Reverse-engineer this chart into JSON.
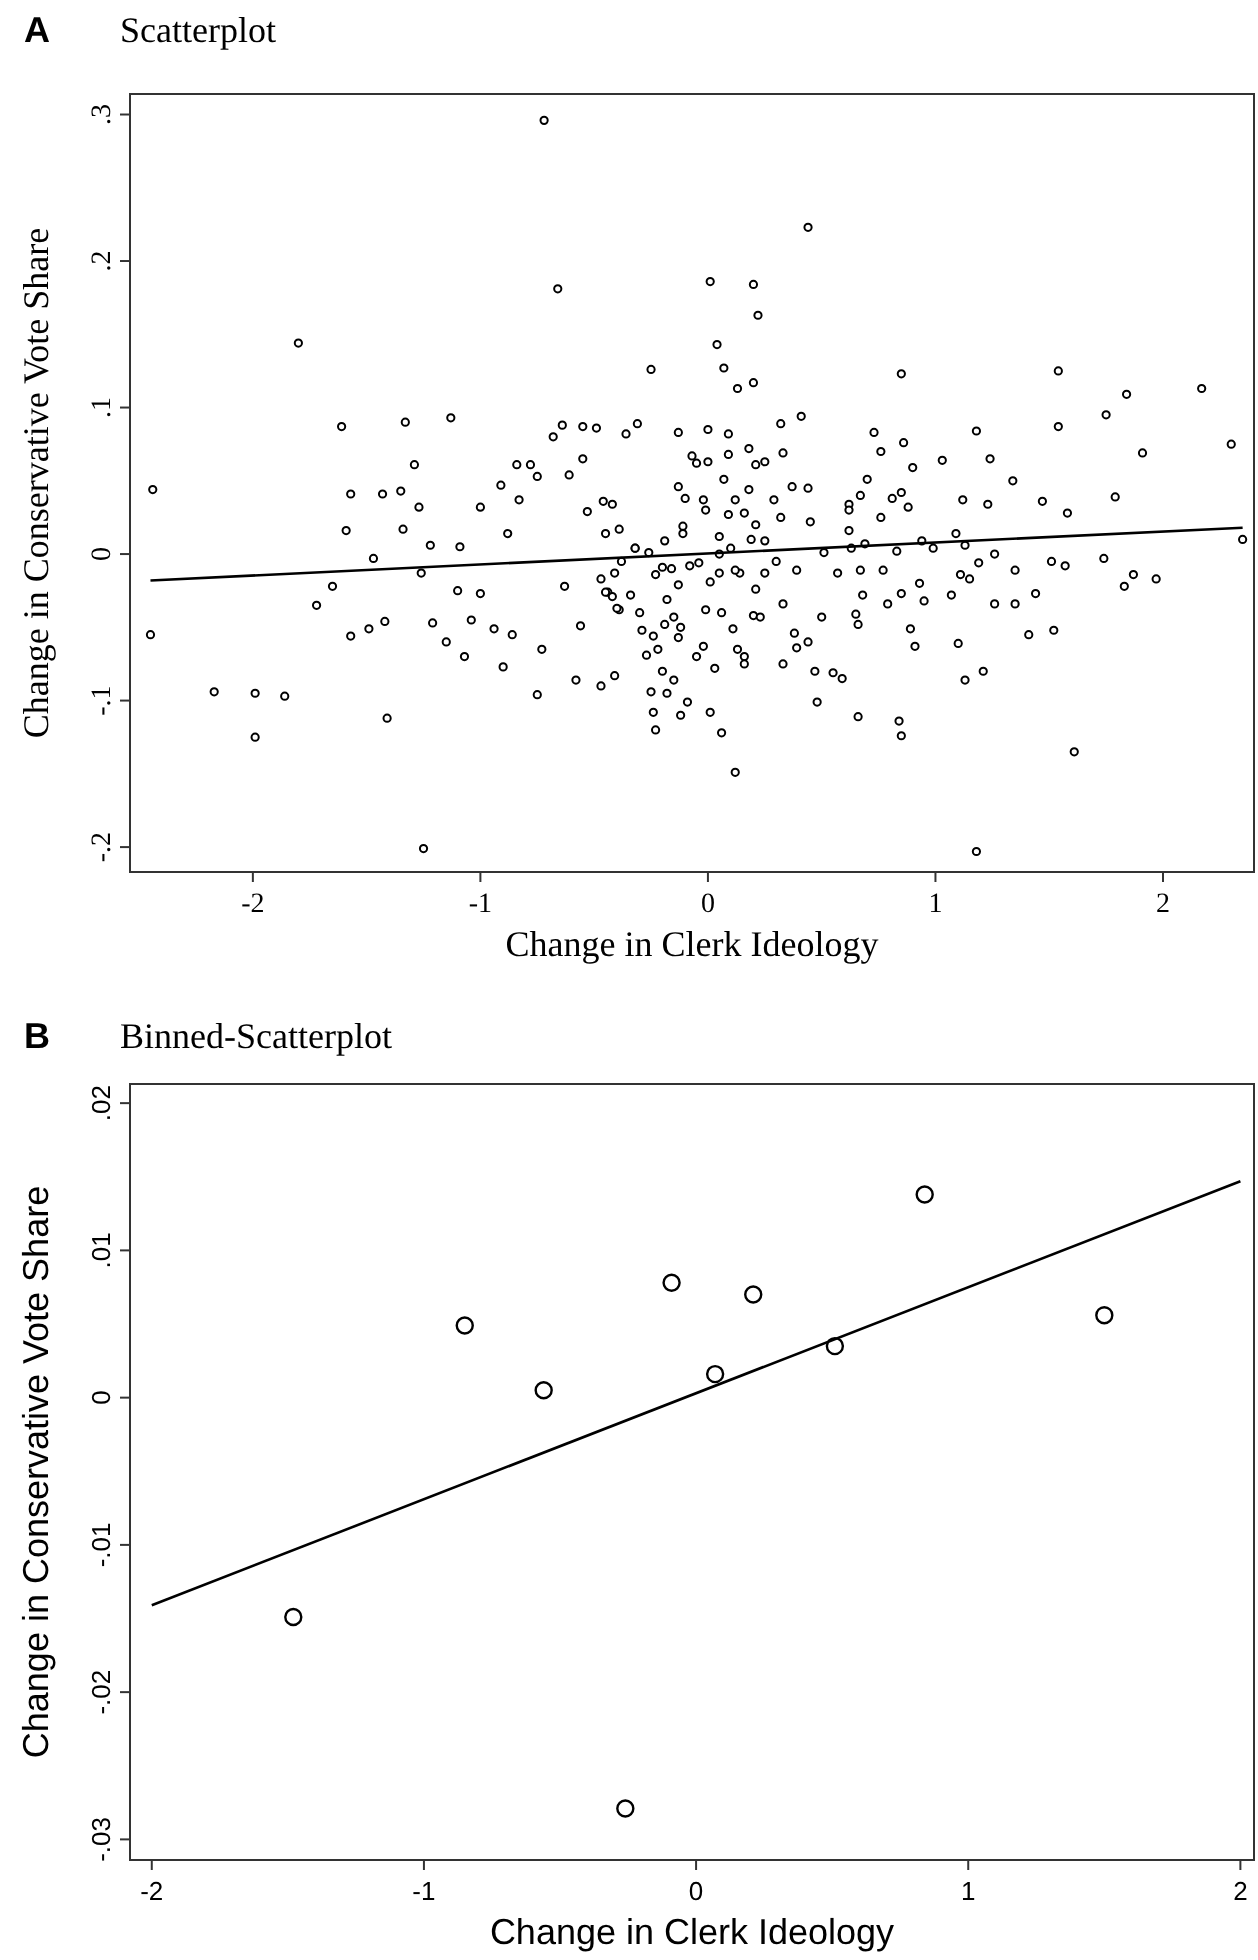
{
  "chart_data": [
    {
      "type": "scatter",
      "title": "Scatterplot",
      "annotations": [
        "A"
      ],
      "xlabel": "Change in Clerk Ideology",
      "ylabel": "Change in Conservative Vote Share",
      "xlim": [
        -2.54,
        2.4
      ],
      "ylim": [
        -0.217,
        0.314
      ],
      "xticks": [
        -2,
        -1,
        0,
        1,
        2
      ],
      "yticks": [
        {
          "value": -0.2,
          "label": "-.2"
        },
        {
          "value": -0.1,
          "label": "-.1"
        },
        0,
        {
          "value": 0.1,
          "label": ".1"
        },
        {
          "value": 0.2,
          "label": ".2"
        },
        {
          "value": 0.3,
          "label": ".3"
        }
      ],
      "grid": false,
      "series": [
        {
          "marker": "circle",
          "color": "#000000",
          "x": [
            -2.44,
            -2.45,
            -2.17,
            -1.99,
            -1.99,
            -1.86,
            -1.8,
            -1.61,
            -1.57,
            -1.59,
            -1.72,
            -1.65,
            -1.57,
            -1.49,
            -1.47,
            -1.43,
            -1.42,
            -1.41,
            -1.33,
            -1.35,
            -1.34,
            -1.29,
            -1.27,
            -1.26,
            -1.25,
            -1.22,
            -1.21,
            -1.13,
            -1.15,
            -1.1,
            -1.07,
            -1.09,
            -1.04,
            -1.0,
            -1.0,
            -0.94,
            -0.91,
            -0.9,
            -0.88,
            -0.84,
            -0.86,
            -0.83,
            -0.78,
            -0.75,
            -0.73,
            -0.75,
            -0.72,
            -0.66,
            -0.64,
            -0.68,
            -0.55,
            -0.55,
            -0.49,
            -0.61,
            -0.58,
            -0.56,
            -0.53,
            -0.46,
            -0.63,
            -0.44,
            -0.39,
            -0.32,
            0.44,
            0.01,
            0.2,
            0.22,
            0.04,
            -0.25,
            0.07,
            0.13,
            0.2,
            0.85,
            1.54,
            1.54,
            1.84,
            2.17,
            1.75,
            2.3,
            2.35,
            1.91,
            1.79,
            1.58,
            1.47,
            1.74,
            1.87,
            1.83,
            1.97,
            1.61,
            1.52,
            1.41,
            1.44,
            1.35,
            1.26,
            1.18,
            1.21,
            1.13,
            1.1,
            1.18,
            1.24,
            1.34,
            1.35,
            1.26,
            1.07,
            1.03,
            1.12,
            1.23,
            1.09,
            0.95,
            0.93,
            0.9,
            0.86,
            0.73,
            0.76,
            0.7,
            0.85,
            0.76,
            0.83,
            0.77,
            0.79,
            0.85,
            0.89,
            0.91,
            0.84,
            0.85,
            0.66,
            0.68,
            0.66,
            0.65,
            0.67,
            0.62,
            0.62,
            0.59,
            0.55,
            0.48,
            0.47,
            0.5,
            0.44,
            0.38,
            0.39,
            0.33,
            0.33,
            0.39,
            0.51,
            0.57,
            0.41,
            0.32,
            0.33,
            0.37,
            0.44,
            0.45,
            0.29,
            0.32,
            0.18,
            0.21,
            0.25,
            0.18,
            0.12,
            0.09,
            0.09,
            0.0,
            0.0,
            -0.07,
            -0.05,
            -0.13,
            -0.13,
            -0.02,
            -0.1,
            0.07,
            -0.31,
            -0.36,
            -0.39,
            -0.42,
            -0.47,
            -0.41,
            -0.29,
            -0.27,
            -0.24,
            -0.22,
            -0.25,
            -0.24,
            -0.23,
            -0.18,
            -0.2,
            -0.15,
            -0.12,
            -0.09,
            0.01,
            0.06,
            0.12,
            0.03,
            0.16,
            0.13,
            0.16,
            -0.05,
            -0.02,
            -0.13,
            -0.19,
            -0.12,
            -0.01,
            0.06,
            0.11,
            0.2,
            0.23,
            0.21,
            0.14,
            0.25,
            0.12,
            0.05,
            0.01,
            -0.04,
            -0.16,
            -0.2,
            -0.23,
            -0.18,
            -0.13,
            -0.15,
            -0.3,
            -0.34,
            -0.42,
            -0.45,
            -0.41,
            -0.47,
            -0.4,
            -0.38,
            -0.26,
            -0.32,
            -0.19,
            -0.11,
            -0.11,
            -0.08,
            0.05,
            0.1,
            0.19,
            0.25,
            0.3,
            -0.45,
            0.09,
            0.16,
            0.21,
            -0.01,
            0.05,
            0.69,
            0.99,
            0.94,
            1.13,
            1.19,
            1.11,
            1.15,
            1.51,
            1.57,
            0.67,
            0.62,
            0.81,
            0.88,
            0.63
          ],
          "values": [
            0.044,
            -0.055,
            -0.094,
            -0.095,
            -0.125,
            -0.097,
            0.144,
            0.087,
            0.041,
            0.016,
            -0.035,
            -0.022,
            -0.056,
            -0.051,
            -0.003,
            0.041,
            -0.046,
            -0.112,
            0.09,
            0.043,
            0.017,
            0.061,
            0.032,
            -0.013,
            -0.201,
            0.006,
            -0.047,
            0.093,
            -0.06,
            -0.025,
            -0.07,
            0.005,
            -0.045,
            -0.027,
            0.032,
            -0.051,
            0.047,
            -0.077,
            0.014,
            0.061,
            -0.055,
            0.037,
            0.061,
            0.053,
            -0.065,
            -0.096,
            0.296,
            0.181,
            0.088,
            0.08,
            0.065,
            0.087,
            0.086,
            0.054,
            -0.086,
            -0.049,
            0.029,
            0.036,
            -0.022,
            -0.026,
            -0.038,
            0.004,
            0.223,
            0.186,
            0.184,
            0.163,
            0.143,
            0.126,
            0.127,
            0.113,
            0.117,
            0.123,
            0.125,
            0.087,
            0.109,
            0.113,
            0.095,
            0.075,
            0.01,
            0.069,
            0.039,
            0.028,
            0.036,
            -0.003,
            -0.014,
            -0.022,
            -0.017,
            -0.135,
            -0.052,
            -0.055,
            -0.027,
            -0.034,
            -0.034,
            -0.203,
            -0.08,
            -0.086,
            -0.061,
            0.084,
            0.065,
            0.05,
            -0.011,
            0.0,
            -0.028,
            0.064,
            0.037,
            0.034,
            0.014,
            -0.032,
            -0.02,
            0.059,
            0.076,
            0.083,
            0.07,
            0.051,
            0.042,
            0.025,
            0.002,
            -0.011,
            -0.034,
            -0.027,
            -0.051,
            -0.063,
            -0.114,
            -0.124,
            -0.111,
            -0.028,
            -0.048,
            -0.041,
            -0.011,
            0.016,
            0.034,
            -0.085,
            -0.081,
            -0.101,
            -0.08,
            -0.043,
            -0.06,
            -0.054,
            -0.064,
            -0.075,
            -0.034,
            -0.011,
            0.001,
            -0.013,
            0.094,
            0.089,
            0.069,
            0.046,
            0.045,
            0.022,
            0.037,
            0.025,
            0.072,
            0.061,
            0.063,
            0.044,
            0.037,
            0.082,
            0.068,
            0.085,
            0.063,
            0.067,
            0.062,
            0.083,
            0.046,
            0.037,
            0.038,
            0.051,
            0.089,
            0.082,
            0.017,
            0.034,
            -0.09,
            -0.083,
            -0.052,
            -0.069,
            -0.056,
            -0.065,
            -0.094,
            -0.108,
            -0.12,
            -0.095,
            -0.08,
            -0.086,
            -0.11,
            -0.101,
            -0.108,
            -0.122,
            -0.149,
            -0.078,
            -0.07,
            -0.065,
            -0.075,
            -0.07,
            -0.063,
            -0.057,
            -0.048,
            -0.05,
            -0.038,
            -0.04,
            -0.051,
            -0.042,
            -0.043,
            -0.024,
            -0.013,
            -0.013,
            -0.011,
            -0.013,
            -0.019,
            -0.006,
            -0.01,
            -0.009,
            -0.014,
            -0.031,
            -0.021,
            -0.043,
            -0.04,
            -0.028,
            -0.029,
            -0.026,
            -0.013,
            -0.017,
            -0.037,
            -0.005,
            0.001,
            0.004,
            0.009,
            0.014,
            0.019,
            -0.008,
            0.0,
            0.004,
            0.01,
            0.009,
            -0.005,
            0.014,
            0.027,
            0.028,
            0.02,
            0.03,
            0.012,
            0.007,
            0.004,
            0.009,
            0.006,
            -0.006,
            -0.014,
            -0.017,
            -0.005,
            -0.008,
            0.04,
            0.03,
            0.038,
            0.032,
            0.004
          ]
        },
        {
          "type": "line",
          "line_style": "solid",
          "color": "#000000",
          "x": [
            -2.45,
            2.35
          ],
          "values": [
            -0.018,
            0.018
          ]
        }
      ]
    },
    {
      "type": "scatter",
      "title": "Binned-Scatterplot",
      "annotations": [
        "B"
      ],
      "xlabel": "Change in Clerk Ideology",
      "ylabel": "Change in Conservative Vote Share",
      "xlim": [
        -2.08,
        2.05
      ],
      "ylim": [
        -0.0314,
        0.0213
      ],
      "xticks": [
        -2,
        -1,
        0,
        1,
        2
      ],
      "yticks": [
        {
          "value": -0.03,
          "label": "-.03"
        },
        {
          "value": -0.02,
          "label": "-.02"
        },
        {
          "value": -0.01,
          "label": "-.01"
        },
        0,
        {
          "value": 0.01,
          "label": ".01"
        },
        {
          "value": 0.02,
          "label": ".02"
        }
      ],
      "grid": false,
      "series": [
        {
          "marker": "circle",
          "color": "#000000",
          "x": [
            -1.48,
            -0.85,
            -0.56,
            -0.26,
            -0.09,
            0.07,
            0.21,
            0.51,
            0.84,
            1.5
          ],
          "values": [
            -0.0149,
            0.0049,
            0.0005,
            -0.0279,
            0.0078,
            0.0016,
            0.007,
            0.0035,
            0.0138,
            0.0056
          ]
        },
        {
          "type": "line",
          "line_style": "solid",
          "color": "#000000",
          "x": [
            -2,
            2
          ],
          "values": [
            -0.0141,
            0.0147
          ]
        }
      ]
    }
  ]
}
